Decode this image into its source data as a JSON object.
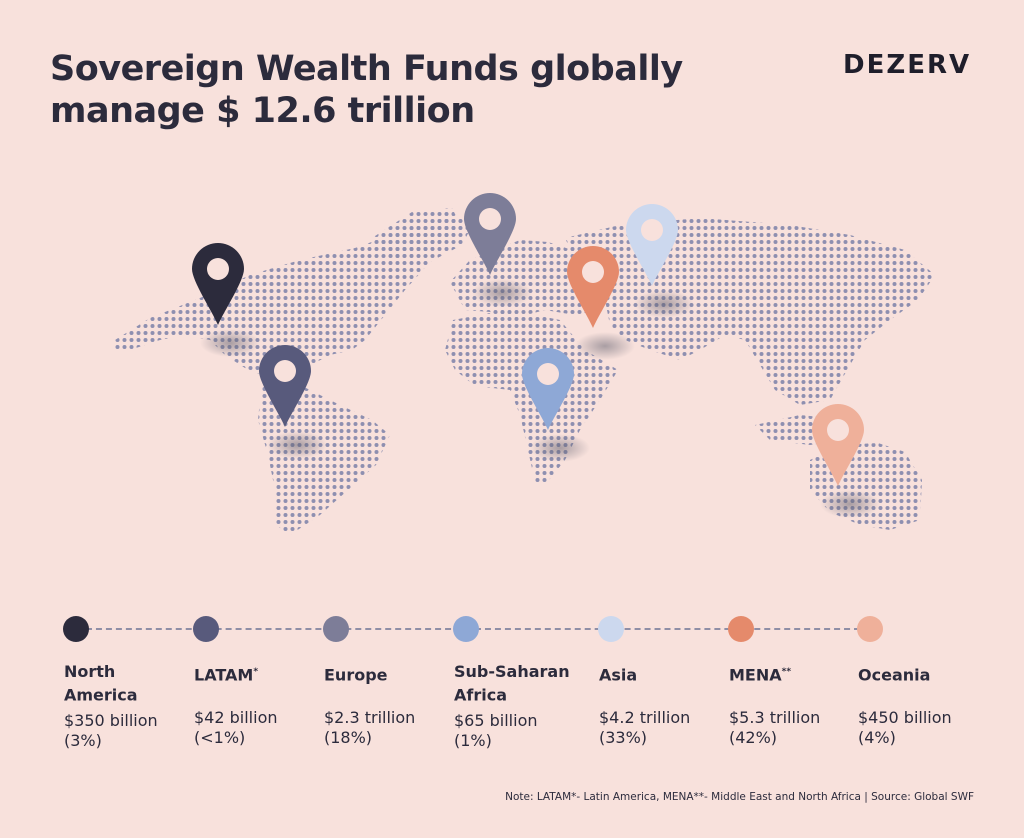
{
  "header": {
    "title_line1": "Sovereign Wealth Funds globally",
    "title_line2": "manage $ 12.6 trillion",
    "brand": "DEZERV"
  },
  "colors": {
    "background": "#f8e1dc",
    "map_dots": "#8e8fb0",
    "timeline": "#8f8ea6",
    "text": "#2c2b3c"
  },
  "regions": [
    {
      "name": "North\nAmerica",
      "sup": "",
      "amount": "$350 billion",
      "share": "(3%)",
      "color": "#2c2b3c"
    },
    {
      "name": "LATAM",
      "sup": "*",
      "amount": "$42 billion",
      "share": "(<1%)",
      "color": "#585a7c"
    },
    {
      "name": "Europe",
      "sup": "",
      "amount": "$2.3 trillion",
      "share": "(18%)",
      "color": "#7d7d98"
    },
    {
      "name": "Sub-Saharan\nAfrica",
      "sup": "",
      "amount": "$65 billion",
      "share": "(1%)",
      "color": "#8ea8d6"
    },
    {
      "name": "Asia",
      "sup": "",
      "amount": "$4.2 trillion",
      "share": "(33%)",
      "color": "#ccd8ee"
    },
    {
      "name": "MENA",
      "sup": "**",
      "amount": "$5.3 trillion",
      "share": "(42%)",
      "color": "#e58a6b"
    },
    {
      "name": "Oceania",
      "sup": "",
      "amount": "$450 billion",
      "share": "(4%)",
      "color": "#efb09a"
    }
  ],
  "note": "Note: LATAM*- Latin America, MENA**- Middle East and North Africa | Source: Global SWF"
}
